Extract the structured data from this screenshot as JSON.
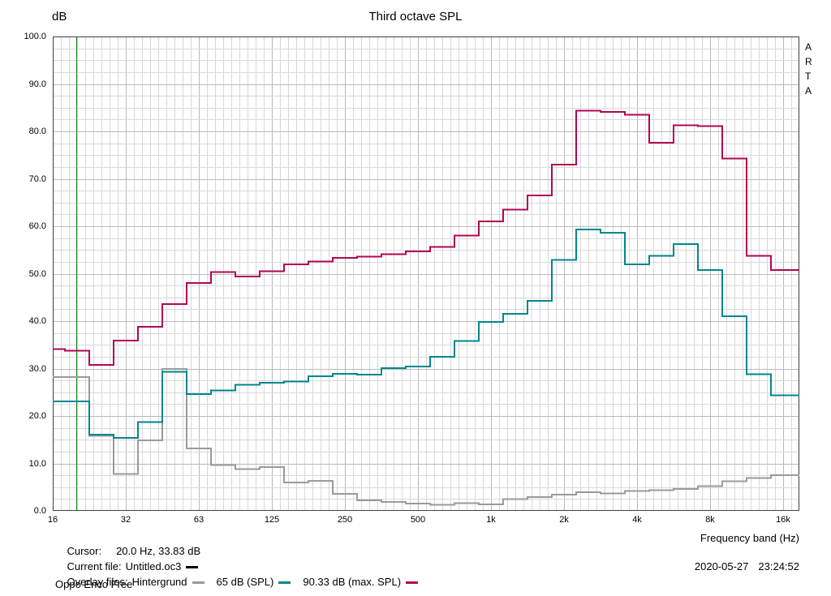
{
  "header": {
    "title": "Third octave SPL",
    "y_axis_unit": "dB",
    "watermark": [
      "A",
      "R",
      "T",
      "A"
    ]
  },
  "footer": {
    "cursor_label": "Cursor:",
    "cursor_value": "20.0 Hz, 33.83 dB",
    "current_file_label": "Current file:",
    "current_file_name": "Untitled.oc3",
    "overlay_files_label": "Overlay files:",
    "device_name": "Oppo Enco Free",
    "x_axis_caption": "Frequency band (Hz)",
    "date": "2020-05-27",
    "time": "23:24:52"
  },
  "chart_data": {
    "type": "step-line",
    "title": "Third octave SPL",
    "ylabel": "dB",
    "xlabel": "Frequency band (Hz)",
    "ylim": [
      0,
      100
    ],
    "y_major_step": 10,
    "y_minor_step": 2.5,
    "y_tick_labels": [
      "100.0",
      "90.0",
      "80.0",
      "70.0",
      "60.0",
      "50.0",
      "40.0",
      "30.0",
      "20.0",
      "10.0",
      "0.0"
    ],
    "x_tick_labels": [
      "16",
      "32",
      "63",
      "125",
      "250",
      "500",
      "1k",
      "2k",
      "4k",
      "8k",
      "16k"
    ],
    "x_scale": "log-third-octave",
    "grid_on": true,
    "legend_position": "bottom",
    "bands_hz": [
      16,
      20,
      25,
      31.5,
      40,
      50,
      63,
      80,
      100,
      125,
      160,
      200,
      250,
      315,
      400,
      500,
      630,
      800,
      1000,
      1250,
      1600,
      2000,
      2500,
      3150,
      4000,
      5000,
      6300,
      8000,
      10000,
      12500,
      16000
    ],
    "series": [
      {
        "name": "Hintergrund",
        "color": "#9a9a9a",
        "values": [
          28.2,
          28.2,
          15.8,
          7.8,
          14.9,
          29.9,
          13.2,
          9.7,
          8.8,
          9.2,
          6.0,
          6.3,
          3.6,
          2.2,
          1.9,
          1.5,
          1.3,
          1.6,
          1.4,
          2.5,
          2.9,
          3.4,
          3.9,
          3.7,
          4.2,
          4.4,
          4.6,
          5.2,
          6.2,
          6.9,
          7.5
        ]
      },
      {
        "name": "65 dB (SPL)",
        "color": "#00868e",
        "values": [
          23.1,
          23.1,
          16.1,
          15.4,
          18.7,
          29.3,
          24.6,
          25.4,
          26.6,
          27.0,
          27.3,
          28.4,
          28.9,
          28.7,
          30.1,
          30.4,
          32.5,
          35.8,
          39.8,
          41.5,
          44.3,
          52.9,
          59.3,
          58.6,
          52.0,
          53.8,
          56.2,
          50.8,
          41.0,
          28.8,
          24.4
        ]
      },
      {
        "name": "90.33 dB (max. SPL)",
        "color": "#b00753",
        "values": [
          34.1,
          33.8,
          30.8,
          35.9,
          38.8,
          43.6,
          48.0,
          50.3,
          49.4,
          50.5,
          52.0,
          52.6,
          53.3,
          53.6,
          54.1,
          54.7,
          55.6,
          58.0,
          61.0,
          63.5,
          66.5,
          73.0,
          84.4,
          84.1,
          83.5,
          77.6,
          81.3,
          81.1,
          74.3,
          53.8,
          50.8
        ]
      }
    ],
    "current_file": {
      "name": "Untitled.oc3",
      "color": "#000000"
    },
    "cursor": {
      "freq_hz": 20.0,
      "value_db": 33.83,
      "color": "#0e7c0e"
    },
    "grid": {
      "minor_color": "#d8d8d8",
      "major_color": "#b9b9b9",
      "border_color": "#404040"
    }
  }
}
